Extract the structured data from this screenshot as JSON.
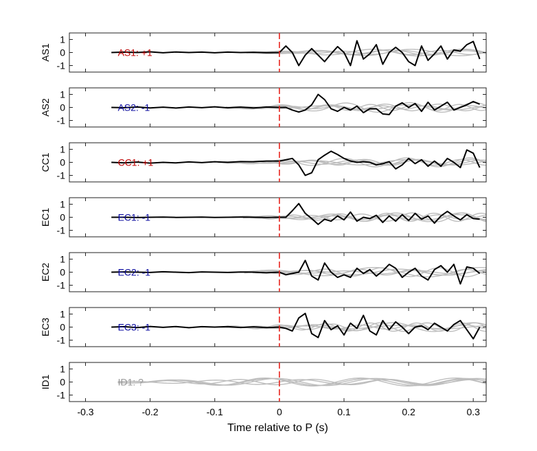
{
  "chart_data": {
    "type": "line",
    "title": "",
    "xlabel": "Time relative to P (s)",
    "xlim": [
      -0.325,
      0.32
    ],
    "ylim": [
      -1.5,
      1.5
    ],
    "x_ticks": [
      -0.3,
      -0.2,
      -0.1,
      0,
      0.1,
      0.2,
      0.3
    ],
    "y_ticks": [
      -1,
      0,
      1
    ],
    "grid": false,
    "marker_line": {
      "x": 0,
      "style": "dashed",
      "color": "#e8251e"
    },
    "colors": {
      "positive": "#c00000",
      "negative": "#0a0aa0",
      "unknown": "#999999",
      "trace": "#000000",
      "background_traces": "#bdbdbd"
    },
    "panels": [
      {
        "ylabel": "AS1",
        "polarity_label": "AS1: +1",
        "polarity": "positive",
        "pre_x": [
          -0.26,
          -0.24,
          -0.22,
          -0.2,
          -0.18,
          -0.16,
          -0.14,
          -0.12,
          -0.1,
          -0.08,
          -0.06,
          -0.04,
          -0.02,
          0
        ],
        "pre_y": [
          0.0,
          0.03,
          0.0,
          0.05,
          -0.02,
          0.04,
          0.0,
          0.03,
          -0.02,
          0.03,
          0.0,
          0.02,
          -0.01,
          0.0
        ],
        "trace_x": [
          0,
          0.01,
          0.02,
          0.03,
          0.04,
          0.05,
          0.06,
          0.07,
          0.08,
          0.09,
          0.1,
          0.11,
          0.12,
          0.13,
          0.14,
          0.15,
          0.16,
          0.17,
          0.18,
          0.19,
          0.2,
          0.21,
          0.22,
          0.23,
          0.24,
          0.25,
          0.26,
          0.27,
          0.28,
          0.29,
          0.3,
          0.31
        ],
        "trace_y": [
          0.0,
          0.5,
          0.0,
          -1.0,
          -0.2,
          0.3,
          -0.2,
          -0.7,
          -0.1,
          0.45,
          0.0,
          -1.0,
          0.9,
          -0.5,
          -0.1,
          0.6,
          -0.9,
          0.0,
          0.4,
          0.0,
          -0.7,
          -1.0,
          0.5,
          -0.6,
          -0.1,
          0.5,
          -0.5,
          0.2,
          0.1,
          0.6,
          0.85,
          -0.5
        ]
      },
      {
        "ylabel": "AS2",
        "polarity_label": "AS2: -1",
        "polarity": "negative",
        "pre_x": [
          -0.26,
          -0.24,
          -0.22,
          -0.2,
          -0.18,
          -0.16,
          -0.14,
          -0.12,
          -0.1,
          -0.08,
          -0.06,
          -0.04,
          -0.02,
          0
        ],
        "pre_y": [
          0.0,
          -0.02,
          0.03,
          -0.04,
          0.02,
          -0.05,
          0.03,
          -0.02,
          0.05,
          -0.03,
          0.02,
          -0.04,
          0.03,
          0.0
        ],
        "trace_x": [
          0,
          0.01,
          0.02,
          0.03,
          0.04,
          0.05,
          0.06,
          0.07,
          0.08,
          0.09,
          0.1,
          0.11,
          0.12,
          0.13,
          0.14,
          0.15,
          0.16,
          0.17,
          0.18,
          0.19,
          0.2,
          0.21,
          0.22,
          0.23,
          0.24,
          0.25,
          0.26,
          0.27,
          0.28,
          0.29,
          0.3,
          0.31
        ],
        "trace_y": [
          0.0,
          0.0,
          -0.2,
          -0.35,
          -0.2,
          0.2,
          1.0,
          0.6,
          -0.1,
          -0.3,
          0.0,
          -0.2,
          0.1,
          -0.4,
          -0.1,
          -0.1,
          -0.5,
          -0.55,
          0.1,
          0.35,
          0.0,
          0.3,
          -0.3,
          0.4,
          -0.2,
          0.1,
          0.4,
          -0.2,
          0.0,
          0.2,
          0.45,
          0.25
        ]
      },
      {
        "ylabel": "CC1",
        "polarity_label": "CC1: +1",
        "polarity": "positive",
        "pre_x": [
          -0.26,
          -0.24,
          -0.22,
          -0.2,
          -0.18,
          -0.16,
          -0.14,
          -0.12,
          -0.1,
          -0.08,
          -0.06,
          -0.04,
          -0.02,
          0
        ],
        "pre_y": [
          0.0,
          -0.04,
          0.02,
          -0.06,
          0.0,
          -0.04,
          0.03,
          -0.02,
          0.05,
          0.0,
          0.06,
          0.05,
          0.1,
          0.1
        ],
        "trace_x": [
          0,
          0.01,
          0.02,
          0.03,
          0.04,
          0.05,
          0.06,
          0.07,
          0.08,
          0.09,
          0.1,
          0.11,
          0.12,
          0.13,
          0.14,
          0.15,
          0.16,
          0.17,
          0.18,
          0.19,
          0.2,
          0.21,
          0.22,
          0.23,
          0.24,
          0.25,
          0.26,
          0.27,
          0.28,
          0.29,
          0.3,
          0.31
        ],
        "trace_y": [
          0.1,
          0.2,
          0.3,
          -0.2,
          -1.0,
          -0.8,
          0.2,
          0.55,
          0.85,
          0.6,
          0.3,
          0.1,
          0.0,
          0.05,
          0.0,
          -0.2,
          -0.1,
          0.05,
          -0.5,
          -0.2,
          0.3,
          -0.1,
          0.2,
          -0.3,
          0.1,
          -0.3,
          0.3,
          0.0,
          -0.4,
          0.95,
          0.7,
          -0.4
        ]
      },
      {
        "ylabel": "EC1",
        "polarity_label": "EC1: -1",
        "polarity": "negative",
        "pre_x": [
          -0.26,
          -0.24,
          -0.22,
          -0.2,
          -0.18,
          -0.16,
          -0.14,
          -0.12,
          -0.1,
          -0.08,
          -0.06,
          -0.04,
          -0.02,
          0
        ],
        "pre_y": [
          0.0,
          0.0,
          -0.02,
          0.0,
          0.01,
          -0.01,
          0.0,
          0.01,
          -0.01,
          0.0,
          0.01,
          0.0,
          -0.01,
          0.0
        ],
        "trace_x": [
          0,
          0.01,
          0.02,
          0.03,
          0.04,
          0.05,
          0.06,
          0.07,
          0.08,
          0.09,
          0.1,
          0.11,
          0.12,
          0.13,
          0.14,
          0.15,
          0.16,
          0.17,
          0.18,
          0.19,
          0.2,
          0.21,
          0.22,
          0.23,
          0.24,
          0.25,
          0.26,
          0.27,
          0.28,
          0.29,
          0.3,
          0.31
        ],
        "trace_y": [
          0.0,
          0.0,
          0.5,
          1.05,
          0.3,
          -0.1,
          -0.55,
          -0.15,
          -0.3,
          0.1,
          -0.2,
          0.4,
          -0.3,
          0.0,
          -0.1,
          0.15,
          -0.4,
          0.1,
          -0.3,
          0.2,
          -0.25,
          0.3,
          -0.15,
          0.1,
          -0.45,
          0.1,
          0.45,
          0.1,
          -0.2,
          0.2,
          -0.1,
          -0.15
        ]
      },
      {
        "ylabel": "EC2",
        "polarity_label": "EC2: -1",
        "polarity": "negative",
        "pre_x": [
          -0.26,
          -0.24,
          -0.22,
          -0.2,
          -0.18,
          -0.16,
          -0.14,
          -0.12,
          -0.1,
          -0.08,
          -0.06,
          -0.04,
          -0.02,
          0
        ],
        "pre_y": [
          0.0,
          0.02,
          0.0,
          -0.02,
          0.03,
          0.0,
          -0.03,
          0.02,
          0.0,
          -0.02,
          0.01,
          0.0,
          -0.05,
          0.0
        ],
        "trace_x": [
          0,
          0.01,
          0.02,
          0.03,
          0.04,
          0.05,
          0.06,
          0.07,
          0.08,
          0.09,
          0.1,
          0.11,
          0.12,
          0.13,
          0.14,
          0.15,
          0.16,
          0.17,
          0.18,
          0.19,
          0.2,
          0.21,
          0.22,
          0.23,
          0.24,
          0.25,
          0.26,
          0.27,
          0.28,
          0.29,
          0.3,
          0.31
        ],
        "trace_y": [
          0.0,
          -0.2,
          -0.1,
          0.0,
          0.9,
          -0.3,
          -0.6,
          0.7,
          0.0,
          -0.4,
          -0.2,
          -0.4,
          0.3,
          -0.1,
          0.2,
          -0.3,
          0.1,
          0.6,
          0.3,
          -0.4,
          0.0,
          0.3,
          -0.3,
          -0.6,
          0.2,
          0.5,
          0.0,
          0.6,
          -0.9,
          0.4,
          0.3,
          -0.1
        ]
      },
      {
        "ylabel": "EC3",
        "polarity_label": "EC3: -1",
        "polarity": "negative",
        "pre_x": [
          -0.26,
          -0.24,
          -0.22,
          -0.2,
          -0.18,
          -0.16,
          -0.14,
          -0.12,
          -0.1,
          -0.08,
          -0.06,
          -0.04,
          -0.02,
          0
        ],
        "pre_y": [
          0.0,
          0.03,
          -0.04,
          0.05,
          -0.02,
          0.04,
          -0.05,
          0.03,
          0.0,
          0.04,
          -0.03,
          0.02,
          -0.04,
          0.0
        ],
        "trace_x": [
          0,
          0.01,
          0.02,
          0.03,
          0.04,
          0.05,
          0.06,
          0.07,
          0.08,
          0.09,
          0.1,
          0.11,
          0.12,
          0.13,
          0.14,
          0.15,
          0.16,
          0.17,
          0.18,
          0.19,
          0.2,
          0.21,
          0.22,
          0.23,
          0.24,
          0.25,
          0.26,
          0.27,
          0.28,
          0.29,
          0.3,
          0.31
        ],
        "trace_y": [
          0.0,
          -0.1,
          -0.3,
          0.7,
          1.05,
          -0.5,
          -0.8,
          0.5,
          -0.2,
          0.1,
          -0.6,
          0.3,
          -0.1,
          0.9,
          -0.3,
          -0.6,
          0.5,
          -0.2,
          0.4,
          0.0,
          -0.5,
          0.0,
          0.1,
          -0.2,
          0.3,
          0.0,
          -0.3,
          0.2,
          0.5,
          -0.2,
          -0.9,
          0.0
        ]
      },
      {
        "ylabel": "ID1",
        "polarity_label": "ID1: ?",
        "polarity": "unknown",
        "pre_x": [],
        "pre_y": [],
        "trace_x": [],
        "trace_y": []
      }
    ]
  }
}
